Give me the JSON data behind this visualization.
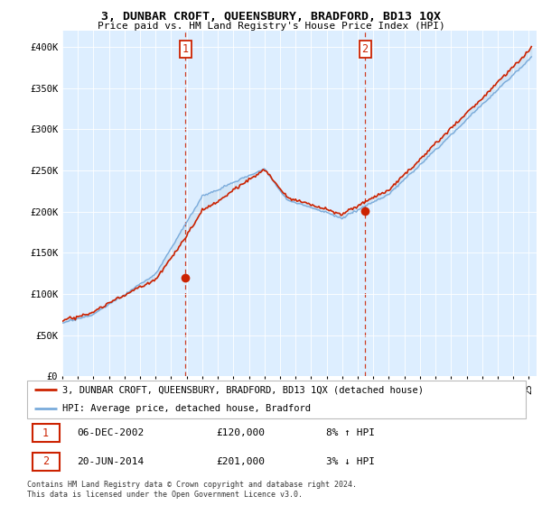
{
  "title": "3, DUNBAR CROFT, QUEENSBURY, BRADFORD, BD13 1QX",
  "subtitle": "Price paid vs. HM Land Registry's House Price Index (HPI)",
  "ylabel_ticks": [
    "£0",
    "£50K",
    "£100K",
    "£150K",
    "£200K",
    "£250K",
    "£300K",
    "£350K",
    "£400K"
  ],
  "ytick_values": [
    0,
    50000,
    100000,
    150000,
    200000,
    250000,
    300000,
    350000,
    400000
  ],
  "ylim": [
    0,
    420000
  ],
  "xlim_start": 1995.0,
  "xlim_end": 2025.5,
  "hpi_color": "#7aabdb",
  "hpi_fill_color": "#c5ddf0",
  "price_color": "#cc2200",
  "marker1_x": 2002.92,
  "marker1_y": 120000,
  "marker2_x": 2014.47,
  "marker2_y": 201000,
  "legend_label1": "3, DUNBAR CROFT, QUEENSBURY, BRADFORD, BD13 1QX (detached house)",
  "legend_label2": "HPI: Average price, detached house, Bradford",
  "table_row1": [
    "1",
    "06-DEC-2002",
    "£120,000",
    "8% ↑ HPI"
  ],
  "table_row2": [
    "2",
    "20-JUN-2014",
    "£201,000",
    "3% ↓ HPI"
  ],
  "footer": "Contains HM Land Registry data © Crown copyright and database right 2024.\nThis data is licensed under the Open Government Licence v3.0.",
  "background_color": "#ffffff",
  "plot_bg_color": "#ddeeff"
}
